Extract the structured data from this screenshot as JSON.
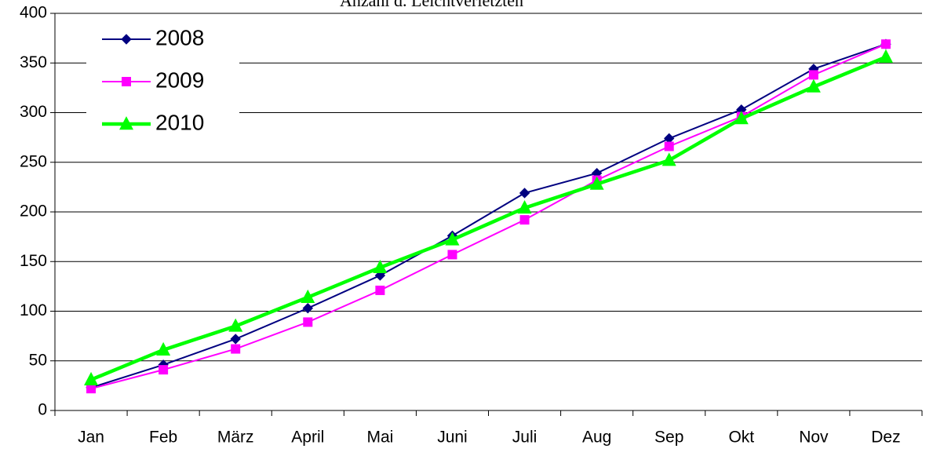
{
  "chart_data": {
    "type": "line",
    "title": "Anzahl d. Leichtverletzten",
    "categories": [
      "Jan",
      "Feb",
      "März",
      "April",
      "Mai",
      "Juni",
      "Juli",
      "Aug",
      "Sep",
      "Okt",
      "Nov",
      "Dez"
    ],
    "series": [
      {
        "name": "2008",
        "color": "#000080",
        "marker": "diamond",
        "values": [
          23,
          46,
          72,
          103,
          136,
          176,
          219,
          239,
          274,
          303,
          344,
          369
        ]
      },
      {
        "name": "2009",
        "color": "#ff00ff",
        "marker": "square",
        "values": [
          22,
          41,
          62,
          89,
          121,
          157,
          192,
          232,
          266,
          296,
          338,
          369
        ]
      },
      {
        "name": "2010",
        "color": "#00ff00",
        "marker": "triangle",
        "values": [
          31,
          61,
          85,
          114,
          144,
          172,
          204,
          228,
          252,
          294,
          326,
          356
        ]
      }
    ],
    "ylim": [
      0,
      400
    ],
    "yticks": [
      0,
      50,
      100,
      150,
      200,
      250,
      300,
      350,
      400
    ],
    "grid": true,
    "legend": "upper left"
  }
}
